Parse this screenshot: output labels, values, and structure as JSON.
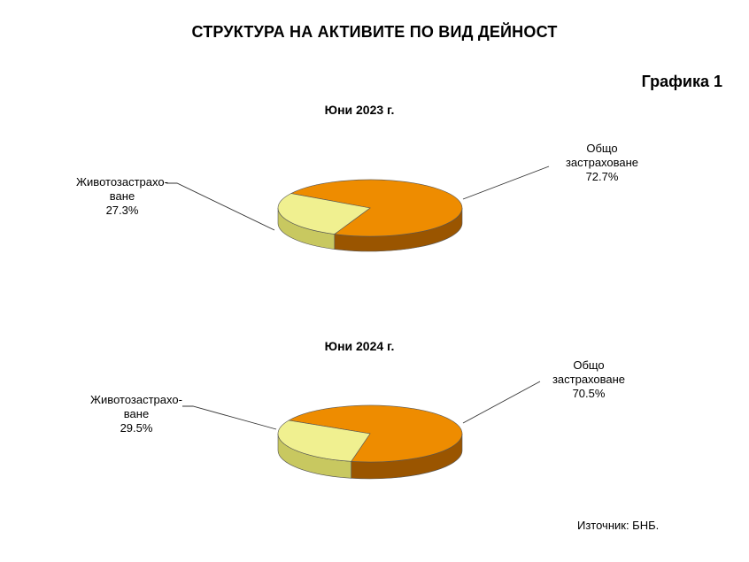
{
  "title": "СТРУКТУРА НА АКТИВИТЕ ПО ВИД ДЕЙНОСТ",
  "graph_label": "Графика 1",
  "source": "Източник:  БНБ.",
  "colors": {
    "general": "#ee8c00",
    "general_side": "#9a5500",
    "life": "#f0f090",
    "life_side": "#c8c860"
  },
  "chart_data": [
    {
      "type": "pie",
      "title": "Юни 2023 г.",
      "slices": [
        {
          "name_line1": "Общо",
          "name_line2": "застраховане",
          "value": 72.7,
          "label": "72.7%"
        },
        {
          "name_line1": "Животозастрахо-",
          "name_line2": "ване",
          "value": 27.3,
          "label": "27.3%"
        }
      ]
    },
    {
      "type": "pie",
      "title": "Юни 2024 г.",
      "slices": [
        {
          "name_line1": "Общо",
          "name_line2": "застраховане",
          "value": 70.5,
          "label": "70.5%"
        },
        {
          "name_line1": "Животозастрахо-",
          "name_line2": "ване",
          "value": 29.5,
          "label": "29.5%"
        }
      ]
    }
  ]
}
